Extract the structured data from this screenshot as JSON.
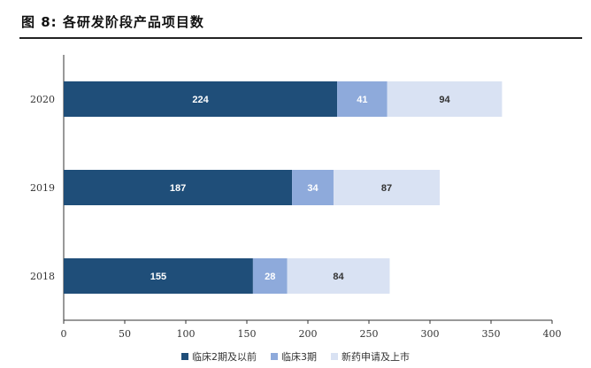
{
  "figure": {
    "title": "图 8:  各研发阶段产品项目数"
  },
  "colors": {
    "series1": "#1f4e79",
    "series2": "#8eaadb",
    "series3": "#d9e2f3",
    "axis": "#333333"
  },
  "chart_data": {
    "type": "bar",
    "orientation": "horizontal",
    "stacked": true,
    "categories": [
      "2020",
      "2019",
      "2018"
    ],
    "series": [
      {
        "name": "临床2期及以前",
        "values": [
          224,
          187,
          155
        ]
      },
      {
        "name": "临床3期",
        "values": [
          41,
          34,
          28
        ]
      },
      {
        "name": "新药申请及上市",
        "values": [
          94,
          87,
          84
        ]
      }
    ],
    "xlim": [
      0,
      400
    ],
    "xticks": [
      0,
      50,
      100,
      150,
      200,
      250,
      300,
      350,
      400
    ],
    "grid": false,
    "legend": "bottom"
  }
}
